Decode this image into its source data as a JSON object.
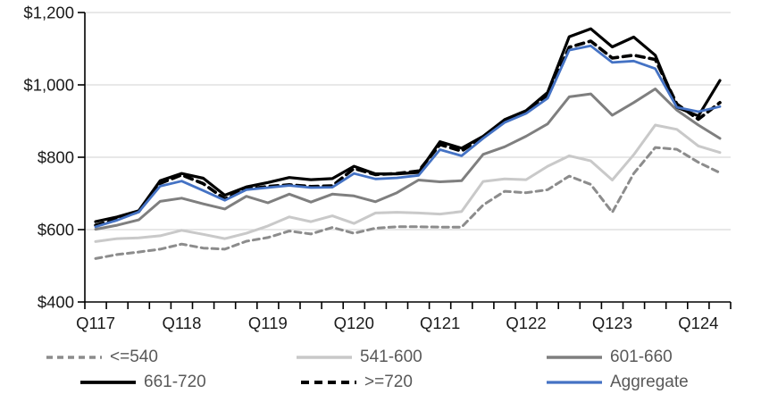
{
  "chart_data": {
    "type": "line",
    "title": "",
    "xlabel": "",
    "ylabel": "",
    "ylim": [
      400,
      1200
    ],
    "grid": true,
    "legend_position": "bottom",
    "x_categories": [
      "Q117",
      "Q217",
      "Q317",
      "Q417",
      "Q118",
      "Q218",
      "Q318",
      "Q418",
      "Q119",
      "Q219",
      "Q319",
      "Q419",
      "Q120",
      "Q220",
      "Q320",
      "Q420",
      "Q121",
      "Q221",
      "Q321",
      "Q421",
      "Q122",
      "Q222",
      "Q322",
      "Q422",
      "Q123",
      "Q223",
      "Q323",
      "Q423",
      "Q124",
      "Q224"
    ],
    "x_axis_labels": [
      "Q117",
      "Q118",
      "Q119",
      "Q120",
      "Q121",
      "Q122",
      "Q123",
      "Q124"
    ],
    "y_ticks": [
      {
        "value": 400,
        "label": "$400"
      },
      {
        "value": 600,
        "label": "$600"
      },
      {
        "value": 800,
        "label": "$800"
      },
      {
        "value": 1000,
        "label": "$1,000"
      },
      {
        "value": 1200,
        "label": "$1,200"
      }
    ],
    "series": [
      {
        "name": "<=540",
        "color": "#8C8C8C",
        "dash": "7 5",
        "width": 3,
        "values": [
          520,
          531,
          538,
          546,
          560,
          549,
          546,
          568,
          578,
          596,
          588,
          606,
          590,
          604,
          608,
          608,
          607,
          607,
          668,
          706,
          702,
          710,
          748,
          725,
          648,
          755,
          827,
          822,
          786,
          757
        ]
      },
      {
        "name": "541-600",
        "color": "#C9C9C9",
        "dash": "",
        "width": 3,
        "values": [
          567,
          575,
          577,
          583,
          598,
          587,
          575,
          590,
          610,
          635,
          622,
          638,
          617,
          646,
          648,
          646,
          643,
          650,
          733,
          740,
          738,
          775,
          804,
          790,
          737,
          807,
          889,
          877,
          831,
          813
        ]
      },
      {
        "name": "601-660",
        "color": "#7F7F7F",
        "dash": "",
        "width": 3,
        "values": [
          601,
          612,
          627,
          678,
          687,
          671,
          657,
          692,
          674,
          698,
          676,
          698,
          693,
          677,
          702,
          737,
          732,
          735,
          808,
          829,
          858,
          892,
          967,
          975,
          916,
          951,
          989,
          930,
          889,
          852
        ]
      },
      {
        "name": "661-720",
        "color": "#000000",
        "dash": "",
        "width": 3.2,
        "values": [
          622,
          635,
          652,
          735,
          755,
          742,
          695,
          718,
          730,
          744,
          738,
          741,
          775,
          754,
          754,
          758,
          843,
          825,
          858,
          904,
          929,
          979,
          1133,
          1155,
          1105,
          1132,
          1082,
          938,
          914,
          1012
        ]
      },
      {
        "name": ">=720",
        "color": "#000000",
        "dash": "9 6",
        "width": 3.6,
        "values": [
          612,
          628,
          650,
          728,
          751,
          727,
          685,
          712,
          719,
          724,
          719,
          721,
          769,
          752,
          755,
          762,
          835,
          817,
          857,
          900,
          925,
          971,
          1104,
          1121,
          1074,
          1082,
          1070,
          947,
          905,
          951
        ]
      },
      {
        "name": "Aggregate",
        "color": "#4472C4",
        "dash": "",
        "width": 2.8,
        "values": [
          608,
          626,
          649,
          720,
          734,
          708,
          681,
          710,
          716,
          722,
          716,
          717,
          755,
          740,
          743,
          750,
          821,
          804,
          852,
          896,
          921,
          963,
          1096,
          1108,
          1062,
          1066,
          1045,
          938,
          926,
          940
        ]
      }
    ],
    "axis_color": "#000000",
    "gridline_color": "#D9D9D9",
    "tick_label_color": "#1a1a1a",
    "legend_text_color": "#595959"
  },
  "legend": {
    "row1": [
      "<=540",
      "541-600",
      "601-660"
    ],
    "row2": [
      "661-720",
      ">=720",
      "Aggregate"
    ]
  }
}
